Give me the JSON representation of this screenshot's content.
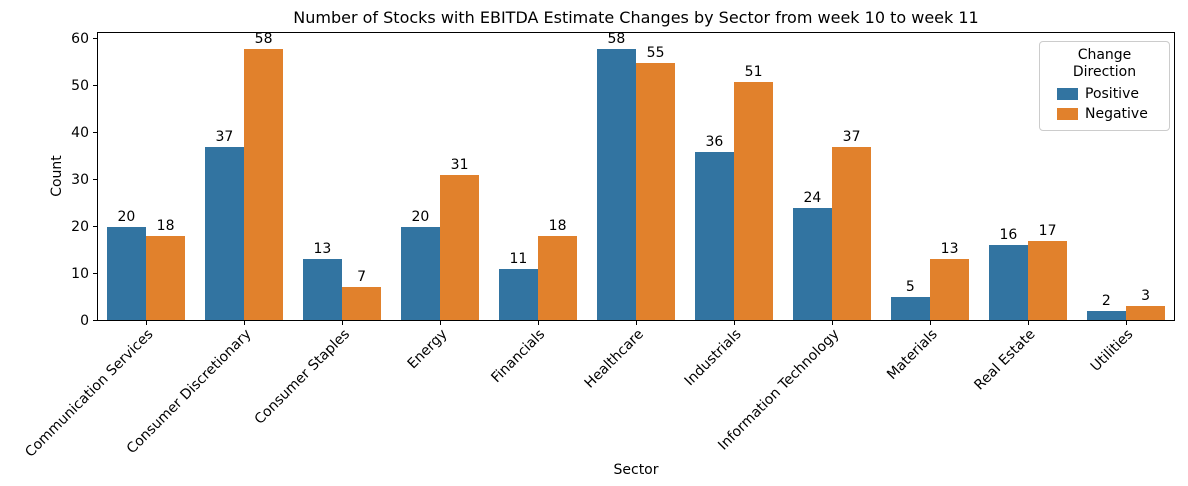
{
  "chart_data": {
    "type": "bar",
    "title": "Number of Stocks with EBITDA Estimate Changes by Sector from week 10 to week 11",
    "xlabel": "Sector",
    "ylabel": "Count",
    "categories": [
      "Communication Services",
      "Consumer Discretionary",
      "Consumer Staples",
      "Energy",
      "Financials",
      "Healthcare",
      "Industrials",
      "Information Technology",
      "Materials",
      "Real Estate",
      "Utilities"
    ],
    "series": [
      {
        "name": "Positive",
        "color": "#3274a1",
        "values": [
          20,
          37,
          13,
          20,
          11,
          58,
          36,
          24,
          5,
          16,
          2
        ]
      },
      {
        "name": "Negative",
        "color": "#e1812c",
        "values": [
          18,
          58,
          7,
          31,
          18,
          55,
          51,
          37,
          13,
          17,
          3
        ]
      }
    ],
    "ylim": [
      0,
      61.4
    ],
    "yticks": [
      0,
      10,
      20,
      30,
      40,
      50,
      60
    ],
    "grid": false,
    "bar_value_labels": true,
    "legend": {
      "title": "Change Direction",
      "entries": [
        "Positive",
        "Negative"
      ],
      "position": "upper right"
    },
    "axis_color": "#000000",
    "x_tick_rotation_deg": 45
  }
}
